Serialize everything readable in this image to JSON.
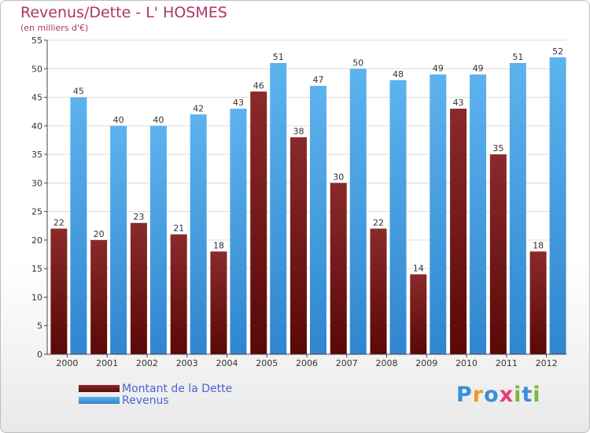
{
  "header": {
    "title": "Revenus/Dette - L' HOSMES",
    "subtitle": "(en milliers d'€)"
  },
  "colors": {
    "title": "#b0336a",
    "dette": "#7a1b1b",
    "revenus": "#3d9ee6",
    "legend_text": "#4a63d6"
  },
  "logo": {
    "text": "Proxiti",
    "letter_colors": [
      "#3a8fd6",
      "#f0962a",
      "#3a8fd6",
      "#e83a7a",
      "#7cb842",
      "#3a8fd6",
      "#7cb842"
    ]
  },
  "chart_data": {
    "type": "bar",
    "categories": [
      "2000",
      "2001",
      "2002",
      "2003",
      "2004",
      "2005",
      "2006",
      "2007",
      "2008",
      "2009",
      "2010",
      "2011",
      "2012"
    ],
    "series": [
      {
        "name": "Montant de la Dette",
        "values": [
          22,
          20,
          23,
          21,
          18,
          46,
          38,
          30,
          22,
          14,
          43,
          35,
          18
        ]
      },
      {
        "name": "Revenus",
        "values": [
          45,
          40,
          40,
          42,
          43,
          51,
          47,
          50,
          48,
          49,
          49,
          51,
          52
        ]
      }
    ],
    "ylim": [
      0,
      55
    ],
    "yticks": [
      0,
      5,
      10,
      15,
      20,
      25,
      30,
      35,
      40,
      45,
      50,
      55
    ],
    "grid": true,
    "legend_position": "bottom-left"
  }
}
